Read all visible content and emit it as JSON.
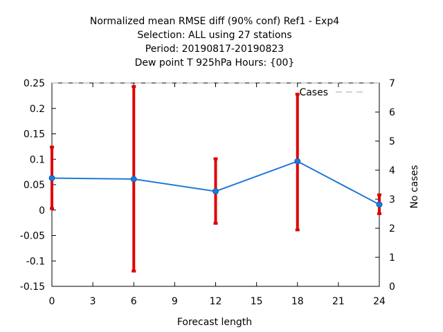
{
  "chart_data": {
    "type": "line",
    "title": [
      "Normalized mean RMSE diff (90% conf) Ref1 - Exp4",
      "Selection: ALL using    27 stations",
      "Period: 20190817-20190823",
      "Dew point T 925hPa   Hours: {00}"
    ],
    "xlabel": "Forecast length",
    "ylabel": "",
    "y2label": "No cases",
    "xlim": [
      0,
      24
    ],
    "ylim": [
      -0.15,
      0.25
    ],
    "y2lim": [
      0,
      7
    ],
    "x_ticks": [
      "0",
      "3",
      "6",
      "9",
      "12",
      "15",
      "18",
      "21",
      "24"
    ],
    "y_ticks": [
      "0.25",
      "0.2",
      "0.15",
      "0.1",
      "0.05",
      "0",
      "-0.05",
      "-0.1",
      "-0.15"
    ],
    "y2_ticks": [
      "7",
      "6",
      "5",
      "4",
      "3",
      "2",
      "1",
      "0"
    ],
    "grid": false,
    "legend": {
      "position": "top-right",
      "label": "Cases"
    },
    "series": [
      {
        "name": "",
        "color": "#1f78d6",
        "x": [
          0,
          6,
          12,
          18,
          24
        ],
        "y": [
          0.063,
          0.061,
          0.037,
          0.096,
          0.011
        ],
        "err_low": [
          0.003,
          -0.12,
          -0.026,
          -0.039,
          -0.007
        ],
        "err_high": [
          0.124,
          0.243,
          0.101,
          0.228,
          0.03
        ],
        "error_bar_color": "#e00000"
      },
      {
        "name": "Cases",
        "axis": "right",
        "style": "dashed",
        "color": "#a0a0a0",
        "x": [
          0,
          6,
          12,
          18,
          24
        ],
        "y": [
          7,
          7,
          7,
          7,
          7
        ]
      }
    ]
  }
}
